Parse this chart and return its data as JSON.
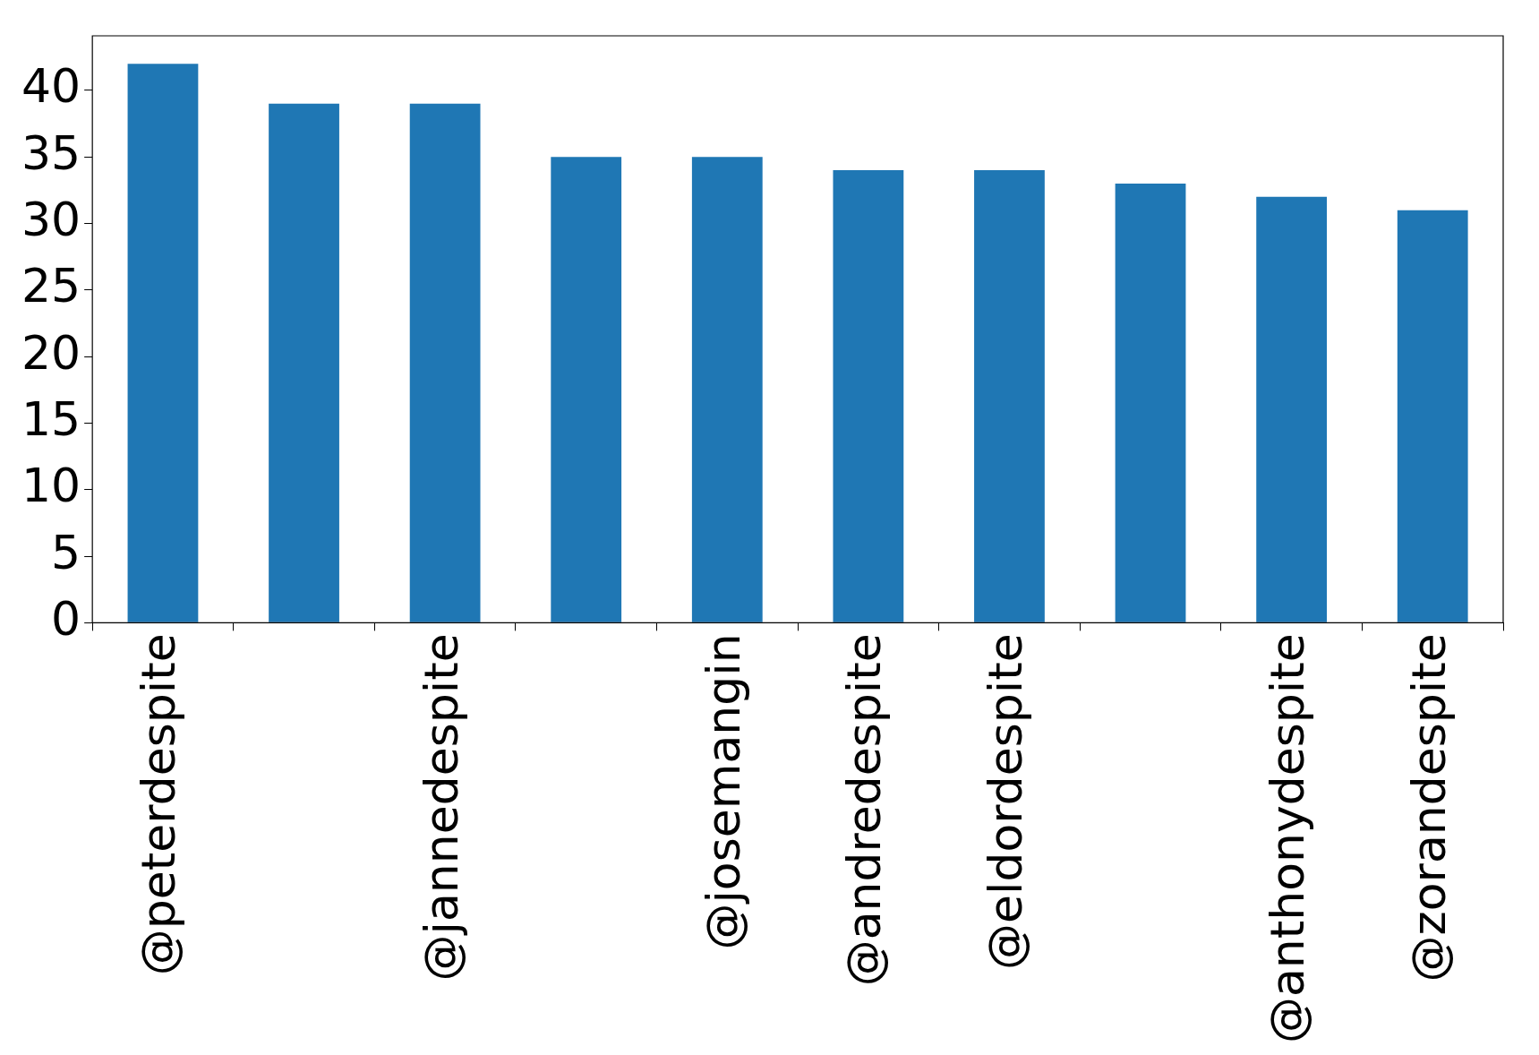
{
  "chart_data": {
    "type": "bar",
    "categories": [
      "@peterdespite",
      null,
      "@jannedespite",
      null,
      "@josemangin",
      "@andredespite",
      "@eldordespite",
      null,
      "@anthonydespite",
      "@zorandespite"
    ],
    "values": [
      42,
      39,
      39,
      35,
      35,
      34,
      34,
      33,
      32,
      31
    ],
    "color": "#1f77b4",
    "ylim": [
      0,
      44.1
    ],
    "yticks": [
      0,
      5,
      10,
      15,
      20,
      25,
      30,
      35,
      40
    ],
    "grid": false,
    "legend": false
  }
}
